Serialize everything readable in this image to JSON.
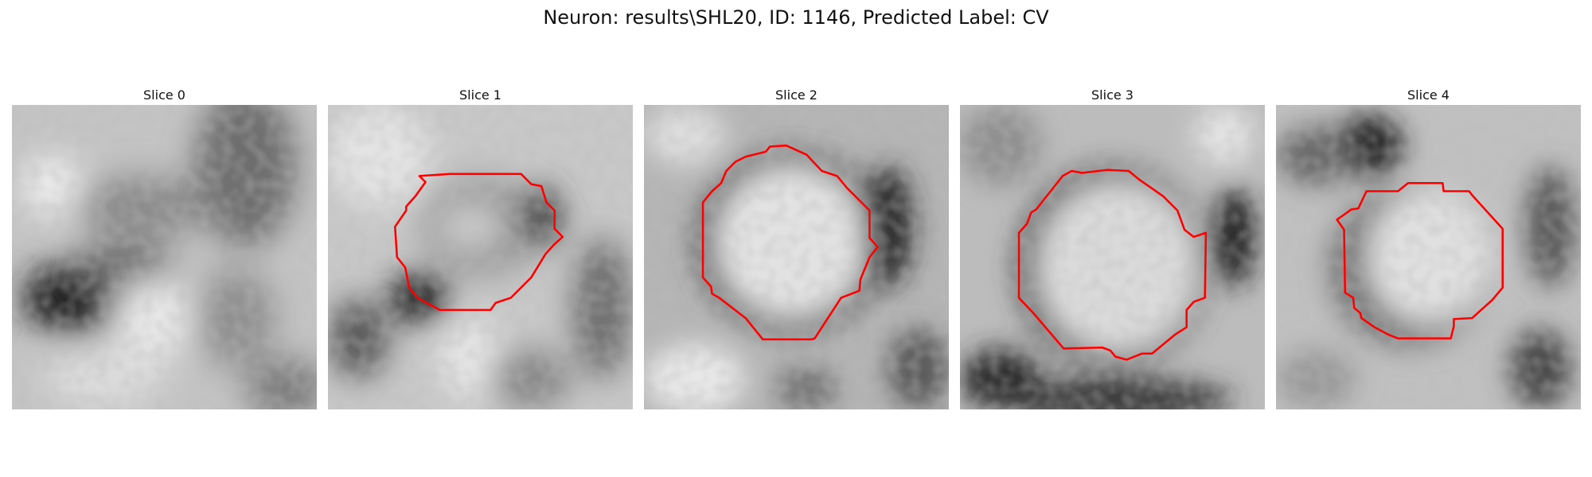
{
  "figure": {
    "title": "Neuron: results\\SHL20, ID: 1146, Predicted Label: CV"
  },
  "slices": [
    {
      "title": "Slice 0",
      "has_contour": false
    },
    {
      "title": "Slice 1",
      "has_contour": true
    },
    {
      "title": "Slice 2",
      "has_contour": true
    },
    {
      "title": "Slice 3",
      "has_contour": true
    },
    {
      "title": "Slice 4",
      "has_contour": true
    }
  ],
  "colors": {
    "contour": "#ff0000",
    "background": "#ffffff"
  }
}
